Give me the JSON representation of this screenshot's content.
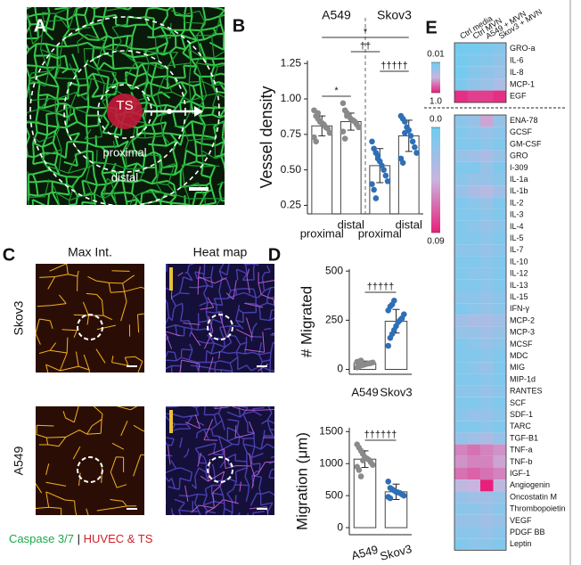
{
  "panel_letters": [
    "A",
    "B",
    "C",
    "D",
    "E"
  ],
  "panel_a": {
    "labels": [
      "TS",
      "proximal",
      "distal"
    ]
  },
  "panel_c": {
    "columns": [
      "Max Int.",
      "Heat map"
    ],
    "rows": [
      "Skov3",
      "A549"
    ],
    "caption": [
      "Caspase 3/7",
      "|",
      "HUVEC & TS"
    ]
  },
  "chart_data": [
    {
      "type": "bar",
      "ylabel": "Vessel density",
      "group_labels": [
        "A549",
        "Skov3"
      ],
      "categories": [
        "proximal",
        "distal",
        "proximal",
        "distal"
      ],
      "values": [
        0.81,
        0.84,
        0.53,
        0.74
      ],
      "errors": [
        0.07,
        0.06,
        0.12,
        0.11
      ],
      "points": [
        [
          0.92,
          0.88,
          0.86,
          0.84,
          0.83,
          0.82,
          0.8,
          0.79,
          0.76,
          0.73,
          0.7,
          0.9
        ],
        [
          0.97,
          0.92,
          0.9,
          0.88,
          0.86,
          0.85,
          0.84,
          0.82,
          0.8,
          0.77,
          0.72,
          0.88
        ],
        [
          0.7,
          0.65,
          0.62,
          0.58,
          0.56,
          0.53,
          0.5,
          0.46,
          0.42,
          0.4,
          0.36,
          0.3,
          0.6
        ],
        [
          0.88,
          0.86,
          0.84,
          0.8,
          0.78,
          0.74,
          0.7,
          0.66,
          0.62,
          0.58,
          0.55,
          0.76
        ]
      ],
      "colors": [
        "#8a8a8a",
        "#8a8a8a",
        "#2f6fb5",
        "#2f6fb5"
      ],
      "ylim": [
        0.19,
        1.27
      ],
      "yticks": [
        0.25,
        {
          "value": 0.5,
          "label": "0.50"
        },
        0.75,
        {
          "value": 1,
          "label": "1.00"
        },
        1.25
      ],
      "annotations": [
        {
          "text": "*",
          "from": 0,
          "to": 1
        },
        {
          "text": "††",
          "from": 1,
          "to": 2
        },
        {
          "text": "*",
          "from": 0,
          "to": 3
        },
        {
          "text": "†††††",
          "from": 2,
          "to": 3
        }
      ]
    },
    {
      "type": "bar",
      "ylabel": "# Migrated",
      "categories": [
        "A549",
        "Skov3"
      ],
      "values": [
        30,
        245
      ],
      "errors": [
        12,
        60
      ],
      "points": [
        [
          10,
          15,
          20,
          22,
          25,
          28,
          30,
          32,
          35,
          38,
          40,
          45
        ],
        [
          120,
          160,
          180,
          200,
          220,
          240,
          250,
          260,
          280,
          300,
          320,
          330,
          350
        ]
      ],
      "colors": [
        "#8a8a8a",
        "#2f6fb5"
      ],
      "ylim": [
        -25,
        510
      ],
      "yticks": [
        0,
        250,
        500
      ],
      "annotations": [
        {
          "text": "†††††",
          "from": 0,
          "to": 1
        }
      ]
    },
    {
      "type": "bar",
      "ylabel": "Migration (μm)",
      "categories": [
        "A549",
        "Skov3"
      ],
      "values": [
        1070,
        560
      ],
      "errors": [
        130,
        120
      ],
      "points": [
        [
          1300,
          1250,
          1200,
          1150,
          1100,
          1080,
          1060,
          1020,
          980,
          950,
          900,
          800,
          1050
        ],
        [
          720,
          620,
          600,
          580,
          560,
          550,
          540,
          520,
          500,
          480,
          460
        ]
      ],
      "colors": [
        "#8a8a8a",
        "#2f6fb5"
      ],
      "ylim": [
        -110,
        1560
      ],
      "yticks": [
        0,
        500,
        1000,
        1500
      ],
      "annotations": [
        {
          "text": "††††††",
          "from": 0,
          "to": 1
        }
      ]
    },
    {
      "type": "heatmap",
      "columns": [
        "Ctrl media",
        "Ctrl MVN",
        "A549 + MVN",
        "Skov3 + MVN"
      ],
      "blocks": [
        {
          "zlim": [
            0.01,
            1
          ],
          "zticks": [
            0.01,
            {
              "value": 1,
              "label": "1.0"
            }
          ],
          "rows": [
            "GRO-a",
            "IL-6",
            "IL-8",
            "MCP-1",
            "EGF"
          ],
          "values": [
            [
              0.05,
              0.05,
              0.1,
              0.15
            ],
            [
              0.05,
              0.1,
              0.15,
              0.2
            ],
            [
              0.05,
              0.15,
              0.2,
              0.25
            ],
            [
              0.1,
              0.2,
              0.25,
              0.35
            ],
            [
              0.95,
              0.9,
              0.9,
              0.95
            ]
          ]
        },
        {
          "zlim": [
            0,
            0.09
          ],
          "zticks": [
            {
              "value": 0,
              "label": "0.0"
            },
            0.09
          ],
          "rows": [
            "ENA-78",
            "GCSF",
            "GM-CSF",
            "GRO",
            "I-309",
            "IL-1a",
            "IL-1b",
            "IL-2",
            "IL-3",
            "IL-4",
            "IL-5",
            "IL-7",
            "IL-10",
            "IL-12",
            "IL-13",
            "IL-15",
            "IFN-γ",
            "MCP-2",
            "MCP-3",
            "MCSF",
            "MDC",
            "MIG",
            "MIP-1d",
            "RANTES",
            "SCF",
            "SDF-1",
            "TARC",
            "TGF-B1",
            "TNF-a",
            "TNF-b",
            "IGF-1",
            "Angiogenin",
            "Oncostatin M",
            "Thrombopoietin",
            "VEGF",
            "PDGF BB",
            "Leptin"
          ],
          "values": [
            [
              0.015,
              0.02,
              0.05,
              0.02
            ],
            [
              0.01,
              0.015,
              0.02,
              0.015
            ],
            [
              0.01,
              0.01,
              0.015,
              0.01
            ],
            [
              0.02,
              0.025,
              0.03,
              0.02
            ],
            [
              0.01,
              0.01,
              0.02,
              0.01
            ],
            [
              0.015,
              0.02,
              0.02,
              0.015
            ],
            [
              0.02,
              0.03,
              0.035,
              0.025
            ],
            [
              0.01,
              0.015,
              0.02,
              0.01
            ],
            [
              0.01,
              0.01,
              0.015,
              0.01
            ],
            [
              0.01,
              0.015,
              0.02,
              0.015
            ],
            [
              0.01,
              0.01,
              0.015,
              0.01
            ],
            [
              0.015,
              0.015,
              0.02,
              0.015
            ],
            [
              0.01,
              0.01,
              0.015,
              0.01
            ],
            [
              0.01,
              0.015,
              0.015,
              0.01
            ],
            [
              0.01,
              0.01,
              0.015,
              0.01
            ],
            [
              0.015,
              0.015,
              0.02,
              0.015
            ],
            [
              0.01,
              0.015,
              0.02,
              0.015
            ],
            [
              0.025,
              0.03,
              0.03,
              0.025
            ],
            [
              0.02,
              0.02,
              0.025,
              0.02
            ],
            [
              0.01,
              0.015,
              0.02,
              0.015
            ],
            [
              0.01,
              0.01,
              0.015,
              0.01
            ],
            [
              0.01,
              0.015,
              0.02,
              0.01
            ],
            [
              0.01,
              0.01,
              0.015,
              0.01
            ],
            [
              0.015,
              0.015,
              0.02,
              0.015
            ],
            [
              0.01,
              0.01,
              0.015,
              0.01
            ],
            [
              0.015,
              0.02,
              0.02,
              0.015
            ],
            [
              0.01,
              0.01,
              0.015,
              0.01
            ],
            [
              0.02,
              0.025,
              0.03,
              0.02
            ],
            [
              0.06,
              0.065,
              0.06,
              0.055
            ],
            [
              0.055,
              0.06,
              0.06,
              0.05
            ],
            [
              0.065,
              0.07,
              0.065,
              0.06
            ],
            [
              0.04,
              0.045,
              0.09,
              0.04
            ],
            [
              0.02,
              0.025,
              0.025,
              0.02
            ],
            [
              0.015,
              0.015,
              0.02,
              0.015
            ],
            [
              0.02,
              0.02,
              0.025,
              0.02
            ],
            [
              0.015,
              0.015,
              0.02,
              0.015
            ],
            [
              0.01,
              0.015,
              0.015,
              0.01
            ]
          ]
        }
      ]
    }
  ]
}
